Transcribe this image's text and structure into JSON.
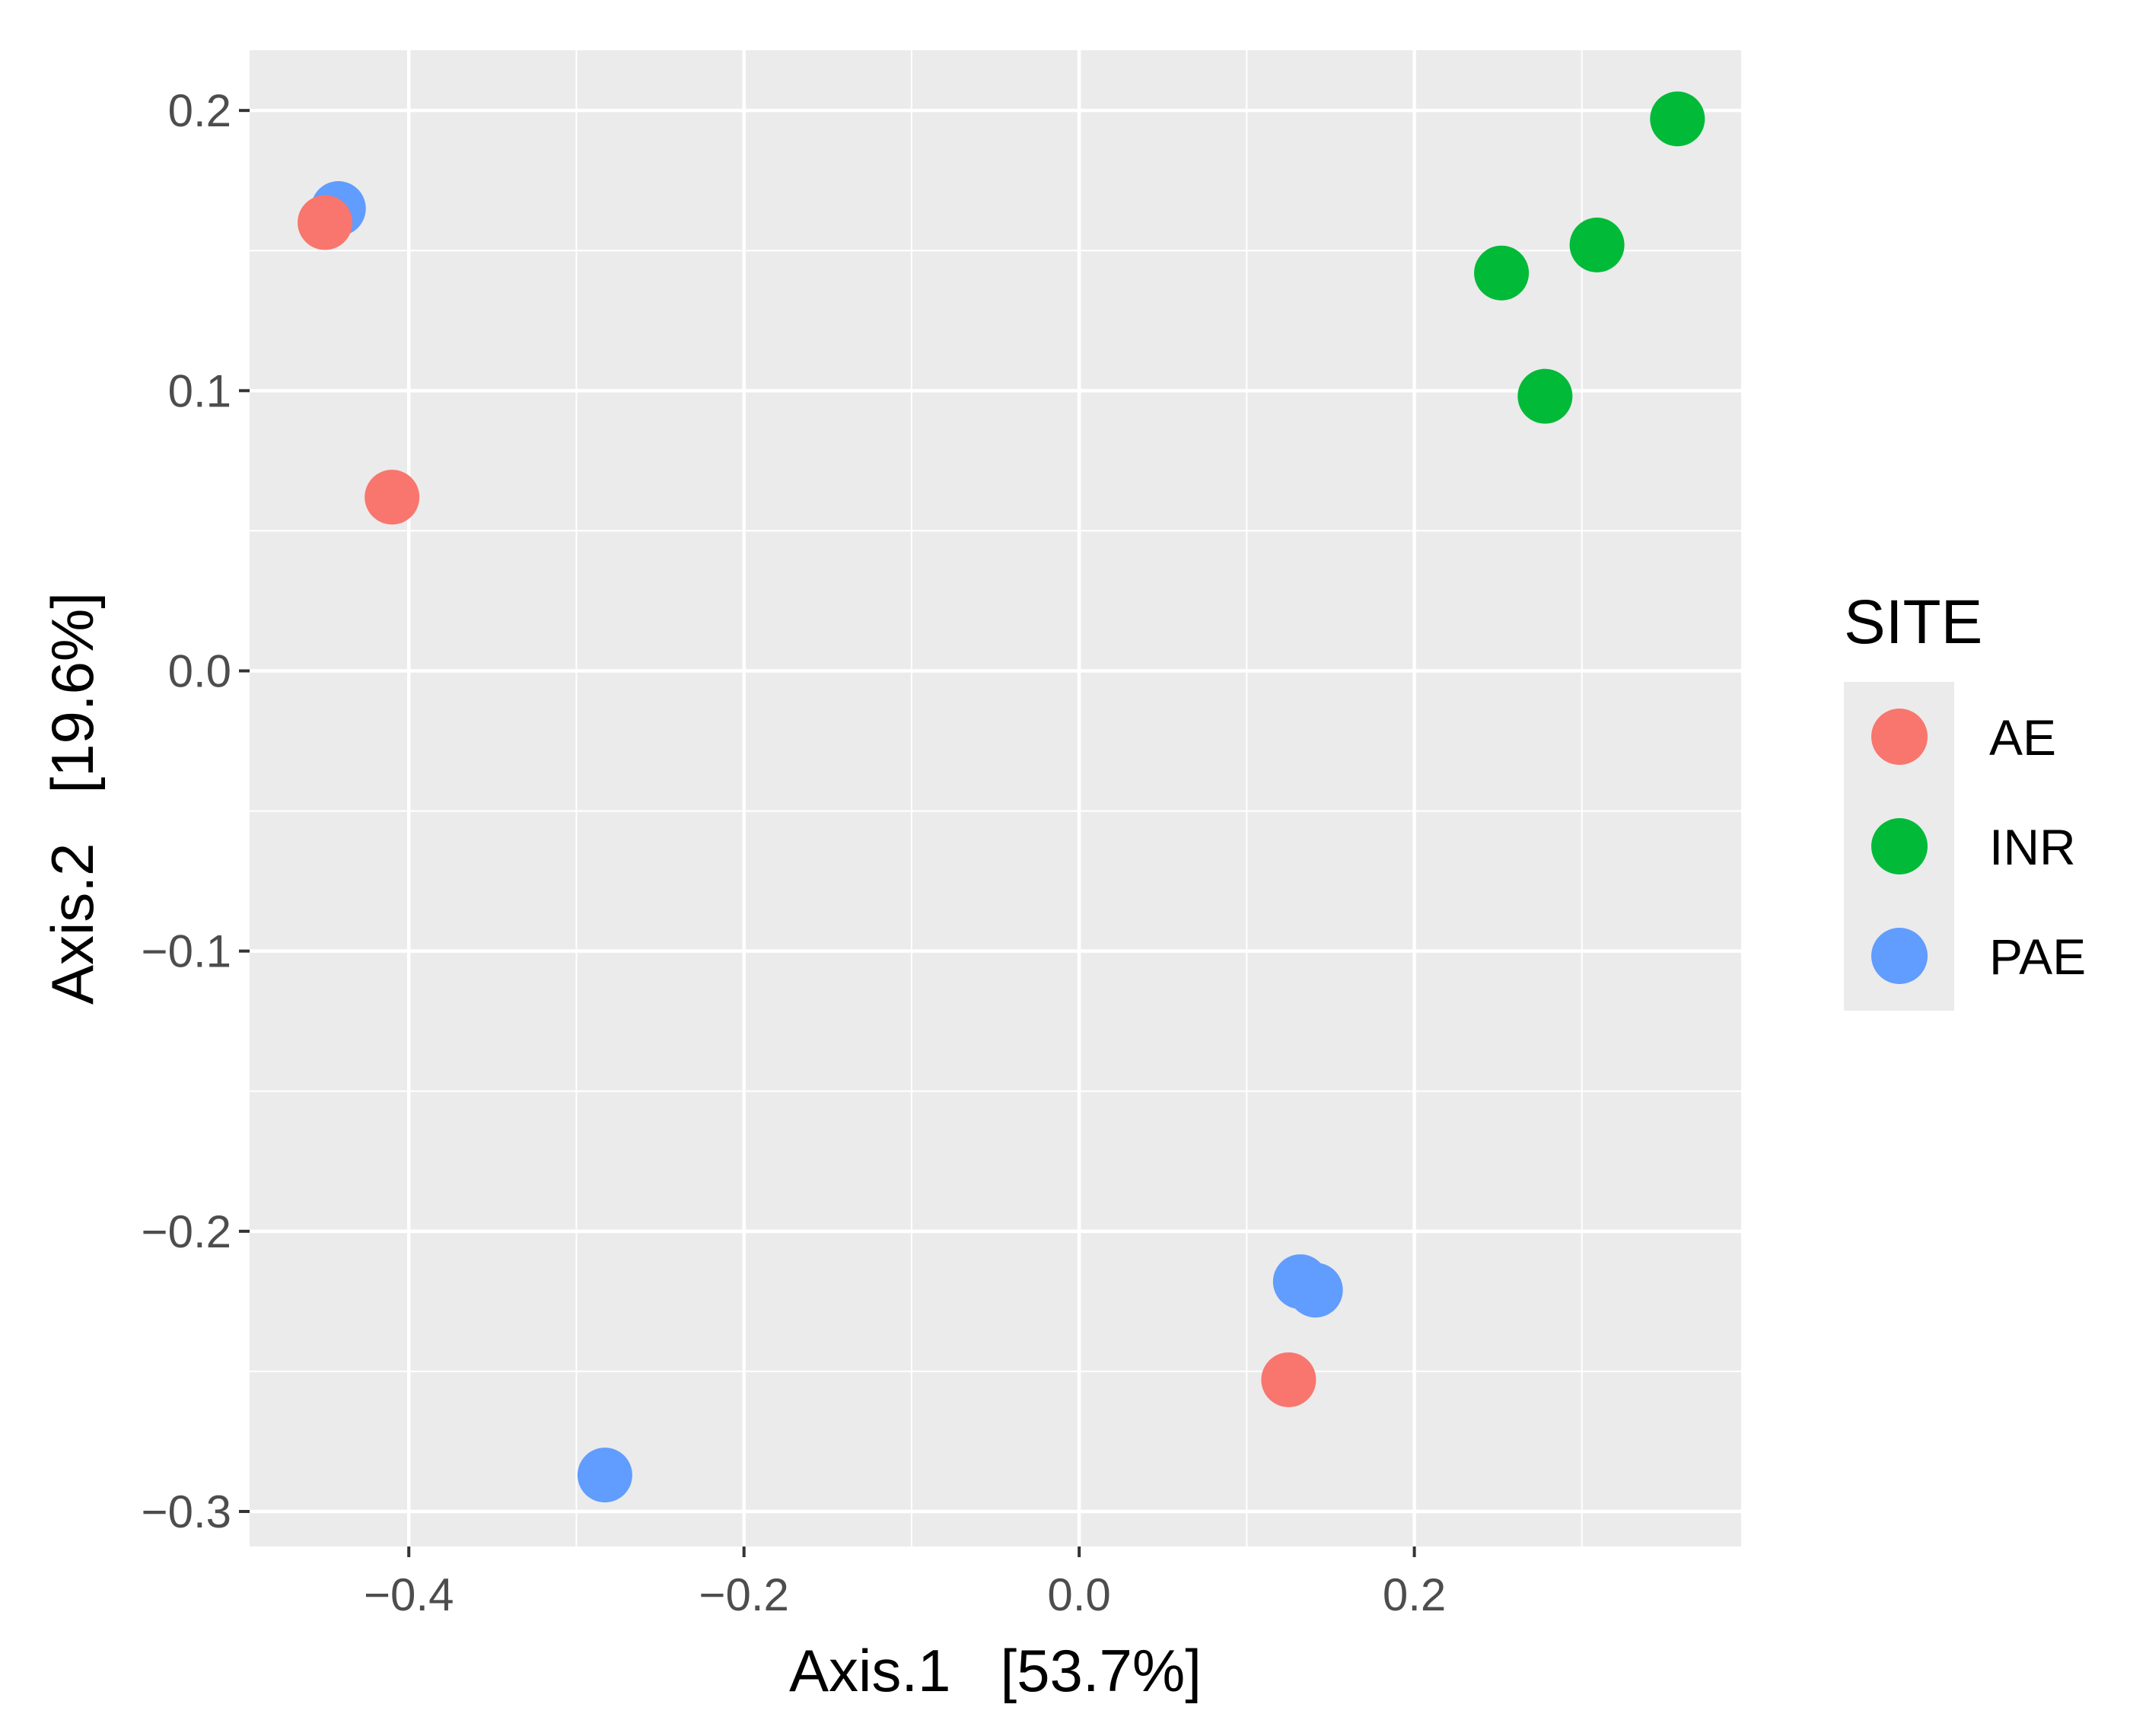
{
  "chart_data": {
    "type": "scatter",
    "title": "",
    "xlabel": "Axis.1   [53.7%]",
    "ylabel": "Axis.2   [19.6%]",
    "xlim": [
      -0.495,
      0.395
    ],
    "ylim": [
      -0.3125,
      0.2215
    ],
    "x_ticks": [
      -0.4,
      -0.2,
      0.0,
      0.2
    ],
    "x_tick_labels": [
      "−0.4",
      "−0.2",
      "0.0",
      "0.2"
    ],
    "y_ticks": [
      -0.3,
      -0.2,
      -0.1,
      0.0,
      0.1,
      0.2
    ],
    "y_tick_labels": [
      "−0.3",
      "−0.2",
      "−0.1",
      "0.0",
      "0.1",
      "0.2"
    ],
    "grid": true,
    "legend": {
      "title": "SITE",
      "position": "right",
      "entries": [
        "AE",
        "INR",
        "PAE"
      ]
    },
    "series": [
      {
        "name": "PAE",
        "color": "#619CFF",
        "points": [
          {
            "x": -0.442,
            "y": 0.165
          },
          {
            "x": -0.283,
            "y": -0.287
          },
          {
            "x": 0.132,
            "y": -0.218
          },
          {
            "x": 0.141,
            "y": -0.221
          }
        ]
      },
      {
        "name": "AE",
        "color": "#F8766D",
        "points": [
          {
            "x": -0.45,
            "y": 0.16
          },
          {
            "x": -0.41,
            "y": 0.062
          },
          {
            "x": 0.125,
            "y": -0.253
          }
        ]
      },
      {
        "name": "INR",
        "color": "#00BA38",
        "points": [
          {
            "x": 0.357,
            "y": 0.197
          },
          {
            "x": 0.309,
            "y": 0.152
          },
          {
            "x": 0.252,
            "y": 0.142
          },
          {
            "x": 0.278,
            "y": 0.098
          }
        ]
      }
    ]
  }
}
